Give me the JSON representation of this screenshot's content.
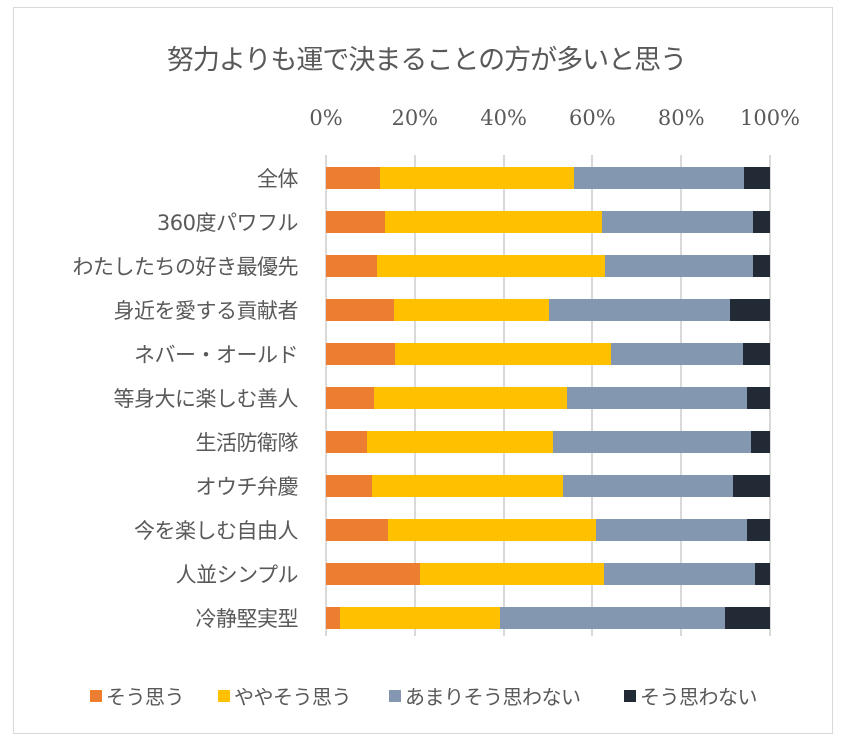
{
  "chart_data": {
    "type": "bar",
    "orientation": "horizontal",
    "stacked": "percent",
    "title": "努力よりも運で決まることの方が多いと思う",
    "xlabel": "",
    "ylabel": "",
    "xlim": [
      0,
      100
    ],
    "x_ticks": [
      "0%",
      "20%",
      "40%",
      "60%",
      "80%",
      "100%"
    ],
    "x_tick_values": [
      0,
      20,
      40,
      60,
      80,
      100
    ],
    "x_axis_position": "top",
    "grid": true,
    "legend_position": "bottom",
    "categories": [
      "全体",
      "360度パワフル",
      "わたしたちの好き最優先",
      "身近を愛する貢献者",
      "ネバー・オールド",
      "等身大に楽しむ善人",
      "生活防衛隊",
      "オウチ弁慶",
      "今を楽しむ自由人",
      "人並シンプル",
      "冷静堅実型"
    ],
    "series": [
      {
        "name": "そう思う",
        "color": "#ED7D31",
        "values": [
          12.2,
          13.3,
          11.5,
          15.3,
          15.5,
          10.8,
          9.2,
          10.4,
          14.0,
          21.2,
          3.2
        ]
      },
      {
        "name": "ややそう思う",
        "color": "#FFC000",
        "values": [
          43.7,
          48.9,
          51.3,
          35.0,
          48.7,
          43.5,
          41.9,
          43.0,
          46.8,
          41.4,
          36.0
        ]
      },
      {
        "name": "あまりそう思わない",
        "color": "#8497B0",
        "values": [
          38.2,
          33.9,
          33.3,
          40.7,
          29.7,
          40.5,
          44.6,
          38.3,
          34.0,
          34.0,
          50.7
        ]
      },
      {
        "name": "そう思わない",
        "color": "#222A35",
        "values": [
          5.9,
          3.9,
          3.9,
          9.0,
          6.1,
          5.2,
          4.3,
          8.3,
          5.2,
          3.4,
          10.1
        ]
      }
    ]
  }
}
